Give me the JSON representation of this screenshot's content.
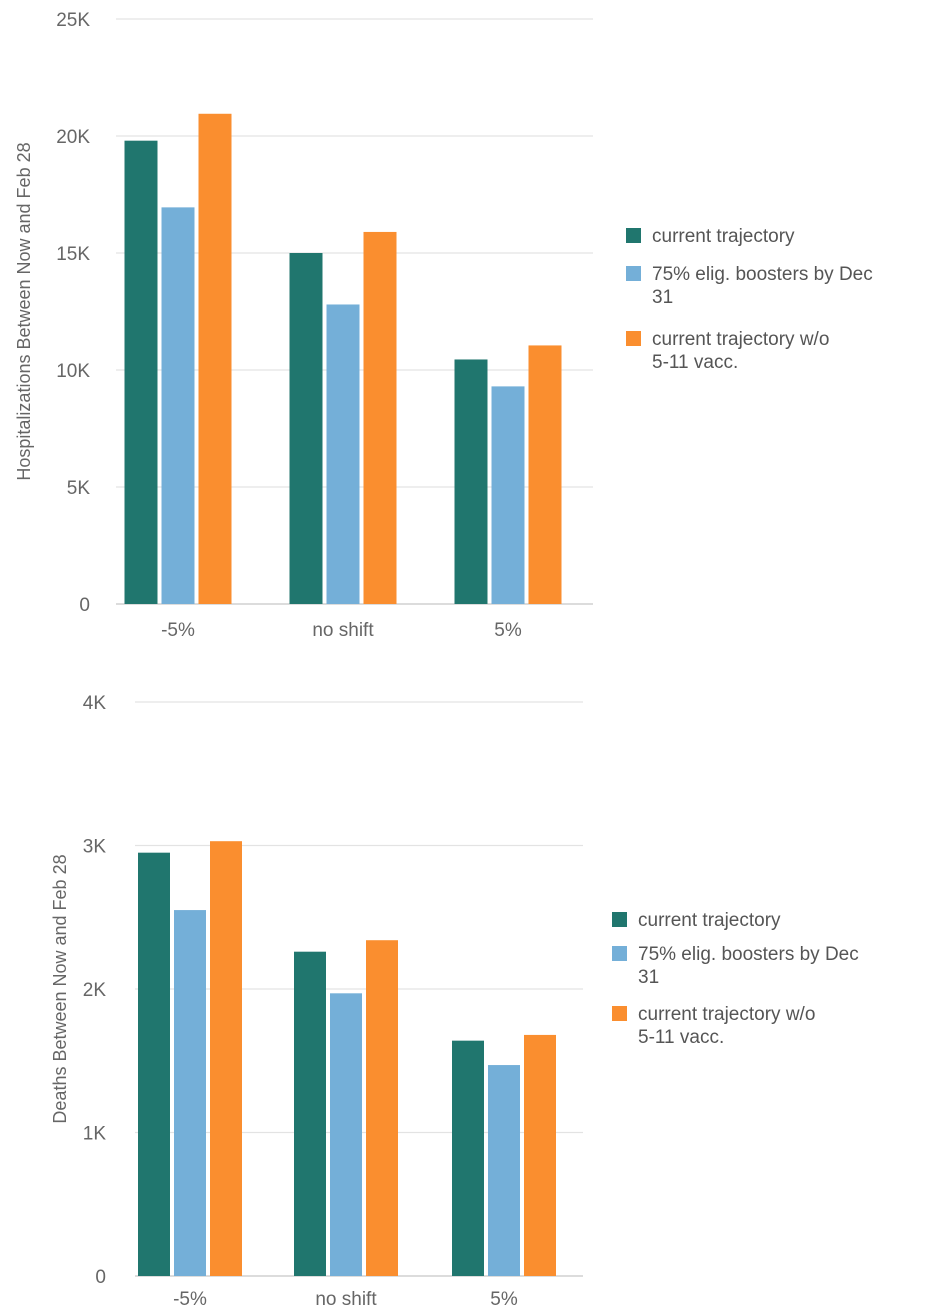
{
  "colors": {
    "series1": "#20766E",
    "series2": "#74AFD8",
    "series3": "#FA8E2F",
    "grid": "#E3E3E3",
    "tick_text": "#666666",
    "legend_text": "#555555"
  },
  "chart_data": [
    {
      "type": "bar",
      "title": "",
      "xlabel": "",
      "ylabel": "Hospitalizations Between Now and Feb 28",
      "categories": [
        "-5%",
        "no shift",
        "5%"
      ],
      "ylim": [
        0,
        25000
      ],
      "yticks": [
        0,
        5000,
        10000,
        15000,
        20000,
        25000
      ],
      "ytick_labels": [
        "0",
        "5K",
        "10K",
        "15K",
        "20K",
        "25K"
      ],
      "grid": true,
      "legend_position": "right",
      "legend": [
        "current trajectory",
        "75% elig. boosters by Dec 31",
        "current trajectory w/o 5-11 vacc."
      ],
      "series": [
        {
          "name": "current trajectory",
          "values": [
            19800,
            15000,
            10450
          ]
        },
        {
          "name": "75% elig. boosters by Dec 31",
          "values": [
            16950,
            12800,
            9300
          ]
        },
        {
          "name": "current trajectory w/o 5-11 vacc.",
          "values": [
            20950,
            15900,
            11050
          ]
        }
      ]
    },
    {
      "type": "bar",
      "title": "",
      "xlabel": "",
      "ylabel": "Deaths Between Now and Feb 28",
      "categories": [
        "-5%",
        "no shift",
        "5%"
      ],
      "ylim": [
        0,
        4000
      ],
      "yticks": [
        0,
        1000,
        2000,
        3000,
        4000
      ],
      "ytick_labels": [
        "0",
        "1K",
        "2K",
        "3K",
        "4K"
      ],
      "grid": true,
      "legend_position": "right",
      "legend": [
        "current trajectory",
        "75% elig. boosters by Dec 31",
        "current trajectory w/o 5-11 vacc."
      ],
      "series": [
        {
          "name": "current trajectory",
          "values": [
            2950,
            2260,
            1640
          ]
        },
        {
          "name": "75% elig. boosters by Dec 31",
          "values": [
            2550,
            1970,
            1470
          ]
        },
        {
          "name": "current trajectory w/o 5-11 vacc.",
          "values": [
            3030,
            2340,
            1680
          ]
        }
      ]
    }
  ]
}
